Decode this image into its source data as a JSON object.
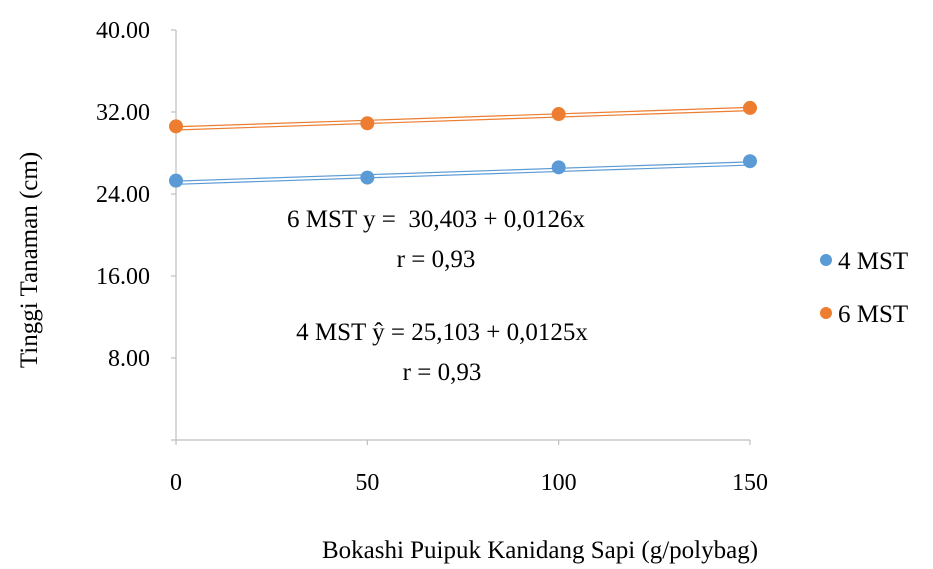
{
  "chart_data": {
    "type": "scatter",
    "x": [
      0,
      50,
      100,
      150
    ],
    "x_tick_labels": [
      "0",
      "50",
      "100",
      "150"
    ],
    "y_tick_labels": [
      "8.00",
      "16.00",
      "24.00",
      "32.00",
      "40.00"
    ],
    "y_ticks": [
      8,
      16,
      24,
      32,
      40
    ],
    "xlim": [
      0,
      150
    ],
    "ylim": [
      0,
      40
    ],
    "xlabel": "Bokashi Puipuk Kanidang Sapi (g/polybag)",
    "ylabel": "Tinggi Tanaman (cm)",
    "grid": false,
    "legend_position": "right",
    "series": [
      {
        "name": "4 MST",
        "color": "#5B9BD5",
        "values": [
          25.3,
          25.6,
          26.6,
          27.2
        ],
        "trendline": {
          "intercept": 25.103,
          "slope": 0.0125
        }
      },
      {
        "name": "6 MST",
        "color": "#ED7D31",
        "values": [
          30.6,
          30.9,
          31.8,
          32.4
        ],
        "trendline": {
          "intercept": 30.403,
          "slope": 0.0126
        }
      }
    ],
    "annotations": [
      {
        "line1": "6 MST y =  30,403 + 0,0126x",
        "line2": "r = 0,93"
      },
      {
        "line1": "4 MST ŷ = 25,103 + 0,0125x",
        "line2": "r = 0,93"
      }
    ]
  }
}
